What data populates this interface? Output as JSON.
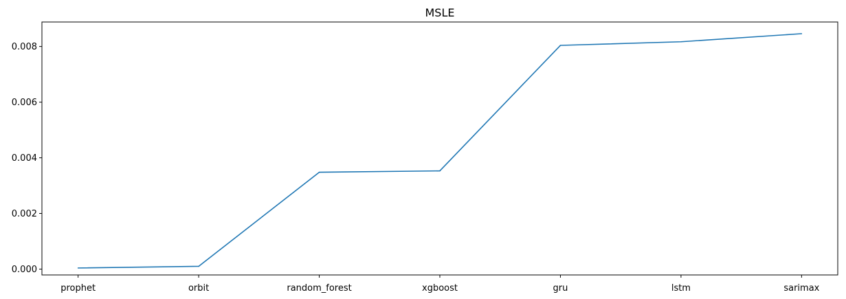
{
  "chart_data": {
    "type": "line",
    "title": "MSLE",
    "xlabel": "",
    "ylabel": "",
    "categories": [
      "prophet",
      "orbit",
      "random_forest",
      "xgboost",
      "gru",
      "lstm",
      "sarimax"
    ],
    "series": [
      {
        "values": [
          4e-05,
          0.0001,
          0.00348,
          0.00353,
          0.00804,
          0.00817,
          0.00846
        ]
      }
    ],
    "ylim": [
      -0.00021,
      0.00888
    ],
    "yticks": [
      0.0,
      0.002,
      0.004,
      0.006,
      0.008
    ],
    "ytick_labels": [
      "0.000",
      "0.002",
      "0.004",
      "0.006",
      "0.008"
    ],
    "grid": false,
    "line_color": "#1f77b4"
  }
}
